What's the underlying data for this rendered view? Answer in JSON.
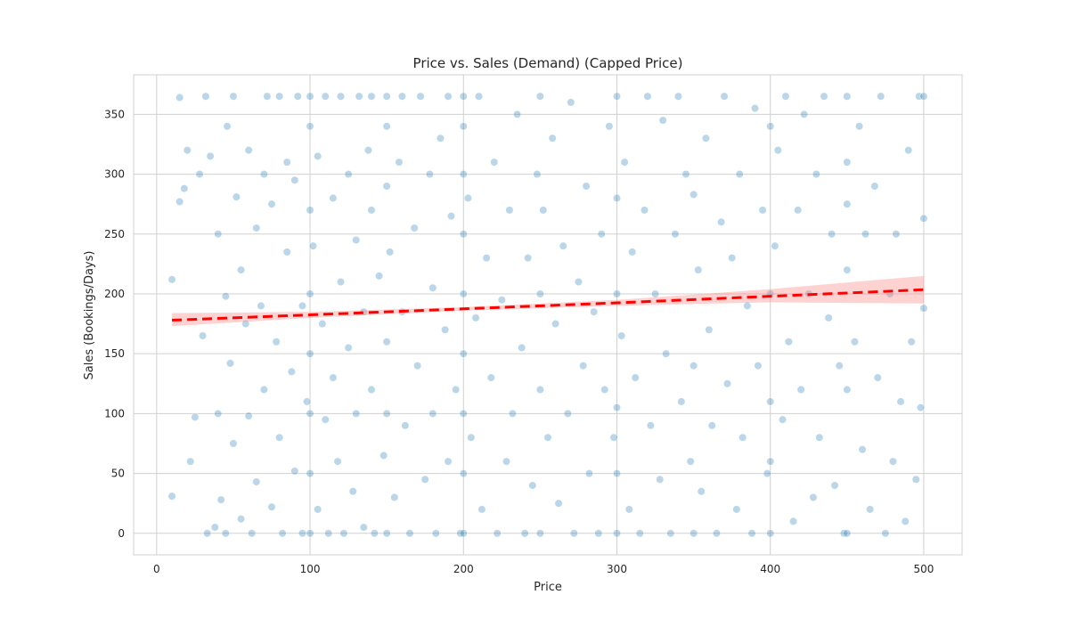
{
  "chart_data": {
    "type": "scatter",
    "title": "Price vs. Sales (Demand) (Capped Price)",
    "xlabel": "Price",
    "ylabel": "Sales (Bookings/Days)",
    "xlim": [
      -15,
      525
    ],
    "ylim": [
      -18,
      383
    ],
    "x_ticks": [
      0,
      100,
      200,
      300,
      400,
      500
    ],
    "y_ticks": [
      0,
      50,
      100,
      150,
      200,
      250,
      300,
      350
    ],
    "x_tick_labels": [
      "0",
      "100",
      "200",
      "300",
      "400",
      "500"
    ],
    "y_tick_labels": [
      "0",
      "50",
      "100",
      "150",
      "200",
      "250",
      "300",
      "350"
    ],
    "grid": true,
    "point_color": "#1f77b4",
    "point_alpha": 0.3,
    "regression_color": "#ff0000",
    "band_color": "#ff7f7f",
    "series": [
      {
        "kind": "points",
        "points": [
          [
            10,
            31
          ],
          [
            10,
            212
          ],
          [
            15,
            364
          ],
          [
            15,
            277
          ],
          [
            18,
            288
          ],
          [
            20,
            320
          ],
          [
            22,
            60
          ],
          [
            25,
            97
          ],
          [
            28,
            300
          ],
          [
            30,
            165
          ],
          [
            32,
            365
          ],
          [
            33,
            0
          ],
          [
            35,
            315
          ],
          [
            38,
            5
          ],
          [
            40,
            250
          ],
          [
            40,
            100
          ],
          [
            42,
            28
          ],
          [
            45,
            198
          ],
          [
            45,
            0
          ],
          [
            46,
            340
          ],
          [
            48,
            142
          ],
          [
            50,
            365
          ],
          [
            50,
            75
          ],
          [
            52,
            281
          ],
          [
            55,
            220
          ],
          [
            55,
            12
          ],
          [
            58,
            175
          ],
          [
            60,
            320
          ],
          [
            60,
            98
          ],
          [
            62,
            0
          ],
          [
            65,
            255
          ],
          [
            65,
            43
          ],
          [
            68,
            190
          ],
          [
            70,
            300
          ],
          [
            70,
            120
          ],
          [
            72,
            365
          ],
          [
            75,
            22
          ],
          [
            75,
            275
          ],
          [
            78,
            160
          ],
          [
            80,
            365
          ],
          [
            80,
            80
          ],
          [
            82,
            0
          ],
          [
            85,
            235
          ],
          [
            85,
            310
          ],
          [
            88,
            135
          ],
          [
            90,
            52
          ],
          [
            90,
            295
          ],
          [
            92,
            365
          ],
          [
            95,
            190
          ],
          [
            95,
            0
          ],
          [
            98,
            110
          ],
          [
            100,
            365
          ],
          [
            100,
            340
          ],
          [
            100,
            270
          ],
          [
            100,
            200
          ],
          [
            100,
            150
          ],
          [
            100,
            100
          ],
          [
            100,
            50
          ],
          [
            100,
            0
          ],
          [
            102,
            240
          ],
          [
            105,
            315
          ],
          [
            105,
            20
          ],
          [
            108,
            175
          ],
          [
            110,
            365
          ],
          [
            110,
            95
          ],
          [
            112,
            0
          ],
          [
            115,
            280
          ],
          [
            115,
            130
          ],
          [
            118,
            60
          ],
          [
            120,
            365
          ],
          [
            120,
            210
          ],
          [
            122,
            0
          ],
          [
            125,
            300
          ],
          [
            125,
            155
          ],
          [
            128,
            35
          ],
          [
            130,
            245
          ],
          [
            130,
            100
          ],
          [
            132,
            365
          ],
          [
            135,
            185
          ],
          [
            135,
            5
          ],
          [
            138,
            320
          ],
          [
            140,
            365
          ],
          [
            140,
            270
          ],
          [
            140,
            120
          ],
          [
            142,
            0
          ],
          [
            145,
            215
          ],
          [
            148,
            65
          ],
          [
            150,
            365
          ],
          [
            150,
            340
          ],
          [
            150,
            290
          ],
          [
            150,
            160
          ],
          [
            150,
            100
          ],
          [
            150,
            0
          ],
          [
            152,
            235
          ],
          [
            155,
            30
          ],
          [
            158,
            310
          ],
          [
            160,
            365
          ],
          [
            160,
            185
          ],
          [
            162,
            90
          ],
          [
            165,
            0
          ],
          [
            168,
            255
          ],
          [
            170,
            140
          ],
          [
            172,
            365
          ],
          [
            175,
            45
          ],
          [
            178,
            300
          ],
          [
            180,
            205
          ],
          [
            180,
            100
          ],
          [
            182,
            0
          ],
          [
            185,
            330
          ],
          [
            188,
            170
          ],
          [
            190,
            365
          ],
          [
            190,
            60
          ],
          [
            192,
            265
          ],
          [
            195,
            120
          ],
          [
            198,
            0
          ],
          [
            200,
            365
          ],
          [
            200,
            340
          ],
          [
            200,
            300
          ],
          [
            200,
            250
          ],
          [
            200,
            200
          ],
          [
            200,
            150
          ],
          [
            200,
            100
          ],
          [
            200,
            50
          ],
          [
            200,
            0
          ],
          [
            203,
            280
          ],
          [
            205,
            80
          ],
          [
            208,
            180
          ],
          [
            210,
            365
          ],
          [
            212,
            20
          ],
          [
            215,
            230
          ],
          [
            218,
            130
          ],
          [
            220,
            310
          ],
          [
            222,
            0
          ],
          [
            225,
            195
          ],
          [
            228,
            60
          ],
          [
            230,
            270
          ],
          [
            232,
            100
          ],
          [
            235,
            350
          ],
          [
            238,
            155
          ],
          [
            240,
            0
          ],
          [
            242,
            230
          ],
          [
            245,
            40
          ],
          [
            248,
            300
          ],
          [
            250,
            365
          ],
          [
            250,
            200
          ],
          [
            250,
            120
          ],
          [
            250,
            0
          ],
          [
            252,
            270
          ],
          [
            255,
            80
          ],
          [
            258,
            330
          ],
          [
            260,
            175
          ],
          [
            262,
            25
          ],
          [
            265,
            240
          ],
          [
            268,
            100
          ],
          [
            270,
            360
          ],
          [
            272,
            0
          ],
          [
            275,
            210
          ],
          [
            278,
            140
          ],
          [
            280,
            290
          ],
          [
            282,
            50
          ],
          [
            285,
            185
          ],
          [
            288,
            0
          ],
          [
            290,
            250
          ],
          [
            292,
            120
          ],
          [
            295,
            340
          ],
          [
            298,
            80
          ],
          [
            300,
            365
          ],
          [
            300,
            280
          ],
          [
            300,
            200
          ],
          [
            300,
            105
          ],
          [
            300,
            50
          ],
          [
            300,
            0
          ],
          [
            303,
            165
          ],
          [
            305,
            310
          ],
          [
            308,
            20
          ],
          [
            310,
            235
          ],
          [
            312,
            130
          ],
          [
            315,
            0
          ],
          [
            318,
            270
          ],
          [
            320,
            365
          ],
          [
            322,
            90
          ],
          [
            325,
            200
          ],
          [
            328,
            45
          ],
          [
            330,
            345
          ],
          [
            332,
            150
          ],
          [
            335,
            0
          ],
          [
            338,
            250
          ],
          [
            340,
            365
          ],
          [
            342,
            110
          ],
          [
            345,
            300
          ],
          [
            348,
            60
          ],
          [
            350,
            283
          ],
          [
            350,
            140
          ],
          [
            350,
            0
          ],
          [
            353,
            220
          ],
          [
            355,
            35
          ],
          [
            358,
            330
          ],
          [
            360,
            170
          ],
          [
            362,
            90
          ],
          [
            365,
            0
          ],
          [
            368,
            260
          ],
          [
            370,
            365
          ],
          [
            372,
            125
          ],
          [
            375,
            230
          ],
          [
            378,
            20
          ],
          [
            380,
            300
          ],
          [
            382,
            80
          ],
          [
            385,
            190
          ],
          [
            388,
            0
          ],
          [
            390,
            355
          ],
          [
            392,
            140
          ],
          [
            395,
            270
          ],
          [
            398,
            50
          ],
          [
            400,
            340
          ],
          [
            400,
            200
          ],
          [
            400,
            110
          ],
          [
            400,
            60
          ],
          [
            400,
            0
          ],
          [
            403,
            240
          ],
          [
            405,
            320
          ],
          [
            408,
            95
          ],
          [
            410,
            365
          ],
          [
            412,
            160
          ],
          [
            415,
            10
          ],
          [
            418,
            270
          ],
          [
            420,
            120
          ],
          [
            422,
            350
          ],
          [
            425,
            200
          ],
          [
            428,
            30
          ],
          [
            430,
            300
          ],
          [
            432,
            80
          ],
          [
            435,
            365
          ],
          [
            438,
            180
          ],
          [
            440,
            250
          ],
          [
            442,
            40
          ],
          [
            445,
            140
          ],
          [
            448,
            0
          ],
          [
            450,
            365
          ],
          [
            450,
            310
          ],
          [
            450,
            275
          ],
          [
            450,
            220
          ],
          [
            450,
            120
          ],
          [
            450,
            0
          ],
          [
            455,
            160
          ],
          [
            458,
            340
          ],
          [
            460,
            70
          ],
          [
            462,
            250
          ],
          [
            465,
            20
          ],
          [
            468,
            290
          ],
          [
            470,
            130
          ],
          [
            472,
            365
          ],
          [
            475,
            0
          ],
          [
            478,
            200
          ],
          [
            480,
            60
          ],
          [
            482,
            250
          ],
          [
            485,
            110
          ],
          [
            488,
            10
          ],
          [
            490,
            320
          ],
          [
            492,
            160
          ],
          [
            495,
            45
          ],
          [
            497,
            365
          ],
          [
            498,
            105
          ],
          [
            500,
            365
          ],
          [
            500,
            263
          ],
          [
            500,
            188
          ]
        ]
      },
      {
        "kind": "regression",
        "points": [
          [
            10,
            178
          ],
          [
            100,
            182.5
          ],
          [
            200,
            187.5
          ],
          [
            300,
            192.5
          ],
          [
            400,
            198
          ],
          [
            500,
            203.5
          ]
        ],
        "ci_low": [
          [
            10,
            173
          ],
          [
            100,
            180
          ],
          [
            200,
            186
          ],
          [
            300,
            190
          ],
          [
            400,
            193
          ],
          [
            500,
            192
          ]
        ],
        "ci_high": [
          [
            10,
            184
          ],
          [
            100,
            185
          ],
          [
            200,
            189
          ],
          [
            300,
            195
          ],
          [
            400,
            204
          ],
          [
            500,
            215
          ]
        ]
      }
    ]
  }
}
